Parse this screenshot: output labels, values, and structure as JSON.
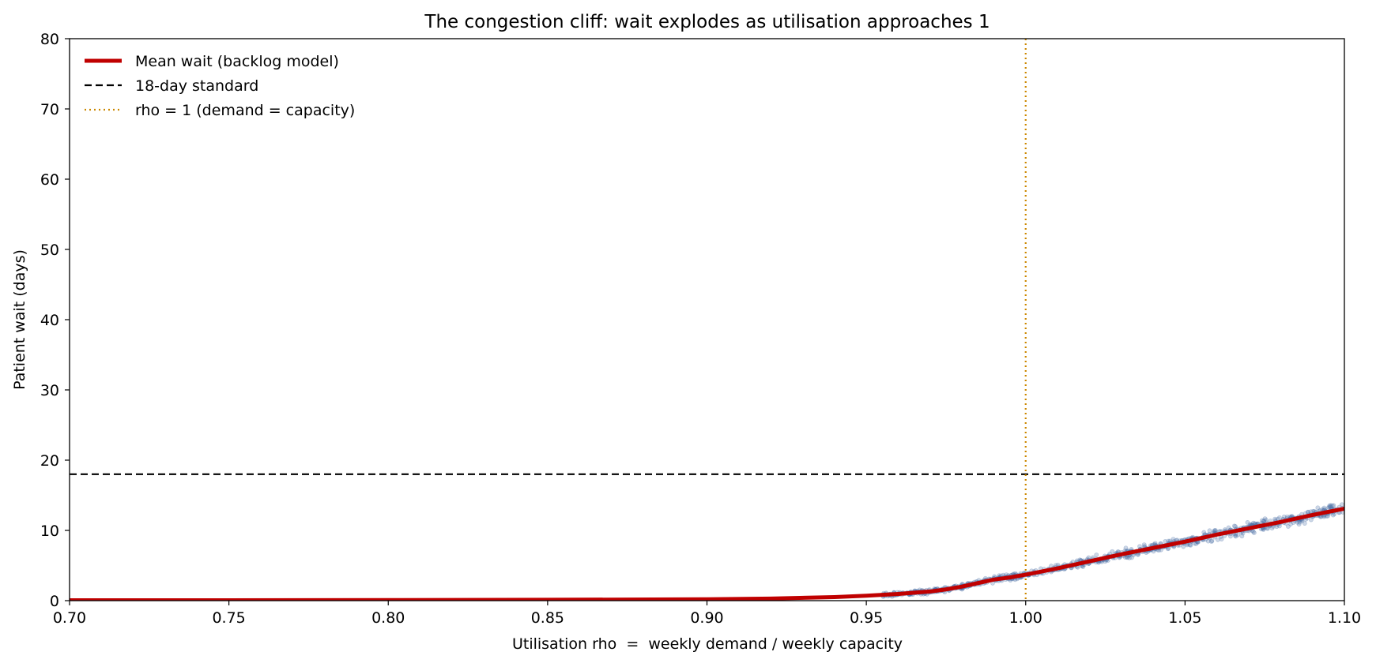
{
  "chart_data": {
    "type": "line",
    "title": "The congestion cliff: wait explodes as utilisation approaches 1",
    "xlabel": "Utilisation rho  =  weekly demand / weekly capacity",
    "ylabel": "Patient wait (days)",
    "xlim": [
      0.7,
      1.1
    ],
    "ylim": [
      0,
      80
    ],
    "xticks": [
      0.7,
      0.75,
      0.8,
      0.85,
      0.9,
      0.95,
      1.0,
      1.05,
      1.1
    ],
    "xtick_labels": [
      "0.70",
      "0.75",
      "0.80",
      "0.85",
      "0.90",
      "0.95",
      "1.00",
      "1.05",
      "1.10"
    ],
    "yticks": [
      0,
      10,
      20,
      30,
      40,
      50,
      60,
      70,
      80
    ],
    "ytick_labels": [
      "0",
      "10",
      "20",
      "30",
      "40",
      "50",
      "60",
      "70",
      "80"
    ],
    "grid": false,
    "legend": "top-left",
    "series": [
      {
        "name": "Mean wait (backlog model)",
        "kind": "line",
        "color": "#c00000",
        "x": [
          0.7,
          0.75,
          0.8,
          0.85,
          0.9,
          0.92,
          0.94,
          0.95,
          0.96,
          0.97,
          0.975,
          0.98,
          0.985,
          0.99,
          0.995,
          1.0,
          1.01,
          1.02,
          1.03,
          1.04,
          1.05,
          1.06,
          1.07,
          1.08,
          1.09,
          1.1
        ],
        "y": [
          0.05,
          0.06,
          0.08,
          0.12,
          0.2,
          0.3,
          0.5,
          0.7,
          0.95,
          1.3,
          1.6,
          2.0,
          2.5,
          3.0,
          3.3,
          3.7,
          4.6,
          5.6,
          6.6,
          7.5,
          8.4,
          9.4,
          10.3,
          11.2,
          12.2,
          13.1
        ]
      },
      {
        "name": "18-day standard",
        "kind": "hline",
        "color": "#000000",
        "y": 18
      },
      {
        "name": "rho = 1 (demand = capacity)",
        "kind": "vline",
        "color": "#cc8800",
        "x": 1.0
      }
    ],
    "scatter": {
      "description_color": "#4a6fa5",
      "x_start": 0.955,
      "x_end": 1.1
    }
  }
}
